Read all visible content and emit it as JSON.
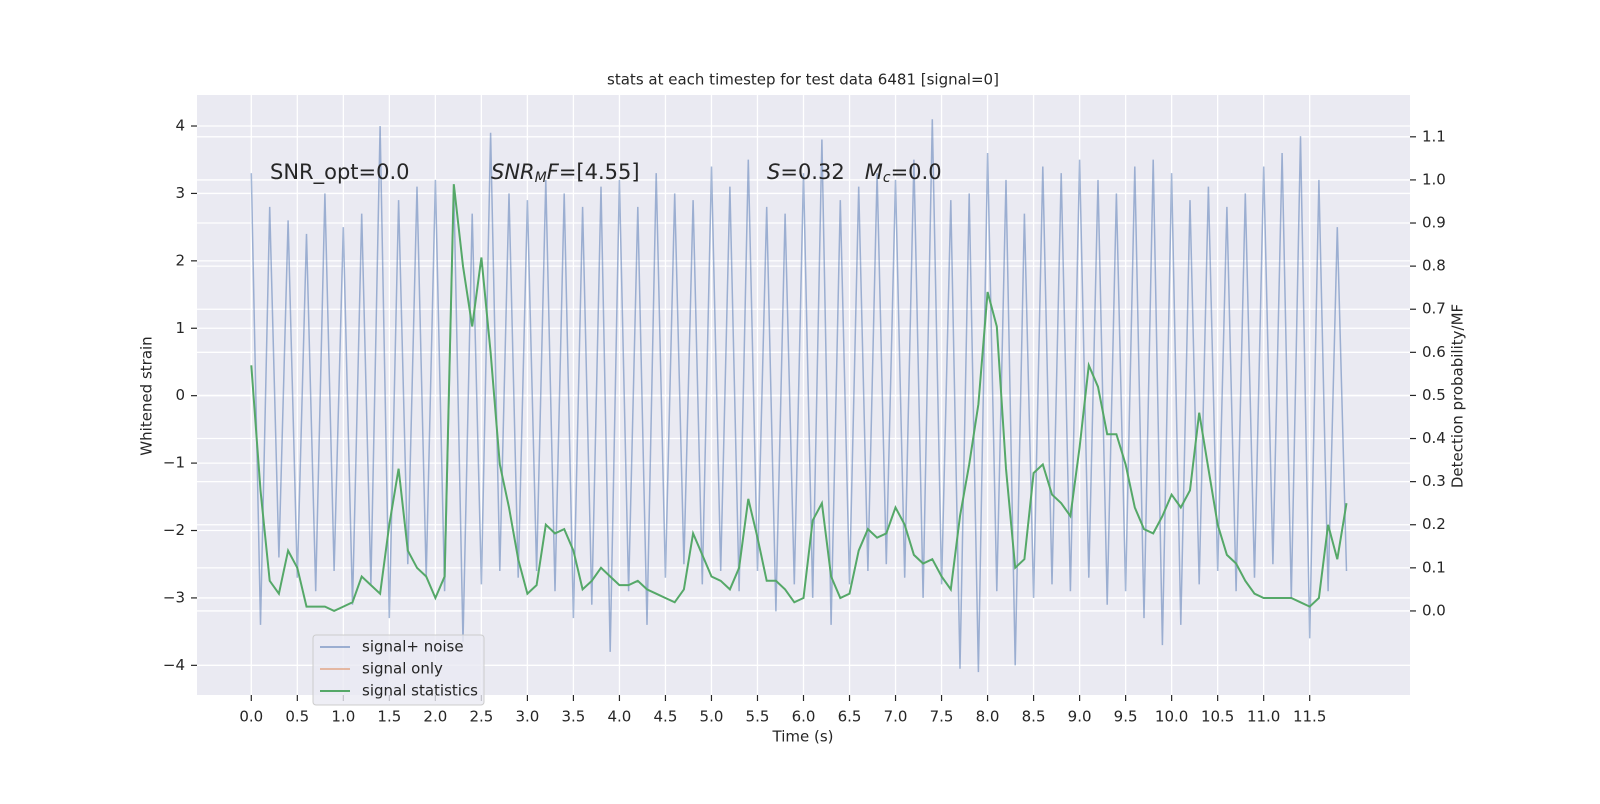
{
  "chart_data": {
    "type": "line",
    "title": "stats at each timestep for test data 6481 [signal=0]",
    "x_label": "Time (s)",
    "y_label": "Whitened strain",
    "y2_label": "Detection probability/MF",
    "annotations": [
      {
        "parts": [
          "SNR_opt=0.0"
        ]
      },
      {
        "parts": [
          "SNR",
          "M",
          "F",
          "=[4.55]"
        ]
      },
      {
        "parts": [
          "S",
          "=0.32   ",
          "M",
          "c",
          "=0.0"
        ]
      }
    ],
    "xlim": [
      -0.59,
      12.59
    ],
    "ylim": [
      -4.44,
      4.46
    ],
    "y2lim": [
      -0.195,
      1.197
    ],
    "xticks": [
      {
        "value": 0,
        "label": "0.0"
      },
      {
        "value": 0.5,
        "label": "0.5"
      },
      {
        "value": 1,
        "label": "1.0"
      },
      {
        "value": 1.5,
        "label": "1.5"
      },
      {
        "value": 2,
        "label": "2.0"
      },
      {
        "value": 2.5,
        "label": "2.5"
      },
      {
        "value": 3,
        "label": "3.0"
      },
      {
        "value": 3.5,
        "label": "3.5"
      },
      {
        "value": 4,
        "label": "4.0"
      },
      {
        "value": 4.5,
        "label": "4.5"
      },
      {
        "value": 5,
        "label": "5.0"
      },
      {
        "value": 5.5,
        "label": "5.5"
      },
      {
        "value": 6,
        "label": "6.0"
      },
      {
        "value": 6.5,
        "label": "6.5"
      },
      {
        "value": 7,
        "label": "7.0"
      },
      {
        "value": 7.5,
        "label": "7.5"
      },
      {
        "value": 8,
        "label": "8.0"
      },
      {
        "value": 8.5,
        "label": "8.5"
      },
      {
        "value": 9,
        "label": "9.0"
      },
      {
        "value": 9.5,
        "label": "9.5"
      },
      {
        "value": 10,
        "label": "10.0"
      },
      {
        "value": 10.5,
        "label": "10.5"
      },
      {
        "value": 11,
        "label": "11.0"
      },
      {
        "value": 11.5,
        "label": "11.5"
      }
    ],
    "yticks": [
      {
        "value": -4,
        "label": "−4"
      },
      {
        "value": -3,
        "label": "−3"
      },
      {
        "value": -2,
        "label": "−2"
      },
      {
        "value": -1,
        "label": "−1"
      },
      0,
      1,
      2,
      3,
      4
    ],
    "y2ticks": [
      {
        "value": 0,
        "label": "0.0"
      },
      {
        "value": 0.1,
        "label": "0.1"
      },
      {
        "value": 0.2,
        "label": "0.2"
      },
      {
        "value": 0.3,
        "label": "0.3"
      },
      {
        "value": 0.4,
        "label": "0.4"
      },
      {
        "value": 0.5,
        "label": "0.5"
      },
      {
        "value": 0.6,
        "label": "0.6"
      },
      {
        "value": 0.7,
        "label": "0.7"
      },
      {
        "value": 0.8,
        "label": "0.8"
      },
      {
        "value": 0.9,
        "label": "0.9"
      },
      {
        "value": 1.0,
        "label": "1.0"
      },
      {
        "value": 1.1,
        "label": "1.1"
      }
    ],
    "grid": true,
    "x": [
      0,
      0.1,
      0.2,
      0.3,
      0.4,
      0.5,
      0.6,
      0.7,
      0.8,
      0.9,
      1,
      1.1,
      1.2,
      1.3,
      1.4,
      1.5,
      1.6,
      1.7,
      1.8,
      1.9,
      2,
      2.1,
      2.2,
      2.3,
      2.4,
      2.5,
      2.6,
      2.7,
      2.8,
      2.9,
      3,
      3.1,
      3.2,
      3.3,
      3.4,
      3.5,
      3.6,
      3.7,
      3.8,
      3.9,
      4,
      4.1,
      4.2,
      4.3,
      4.4,
      4.5,
      4.6,
      4.7,
      4.8,
      4.9,
      5,
      5.1,
      5.2,
      5.3,
      5.4,
      5.5,
      5.6,
      5.7,
      5.8,
      5.9,
      6,
      6.1,
      6.2,
      6.3,
      6.4,
      6.5,
      6.6,
      6.7,
      6.8,
      6.9,
      7,
      7.1,
      7.2,
      7.3,
      7.4,
      7.5,
      7.6,
      7.7,
      7.8,
      7.9,
      8,
      8.1,
      8.2,
      8.3,
      8.4,
      8.5,
      8.6,
      8.7,
      8.8,
      8.9,
      9,
      9.1,
      9.2,
      9.3,
      9.4,
      9.5,
      9.6,
      9.7,
      9.8,
      9.9,
      10,
      10.1,
      10.2,
      10.3,
      10.4,
      10.5,
      10.6,
      10.7,
      10.8,
      10.9,
      11,
      11.1,
      11.2,
      11.3,
      11.4,
      11.5,
      11.6,
      11.7,
      11.8,
      11.9
    ],
    "series": [
      {
        "name": "signal+ noise",
        "color": "#4c72b0",
        "values": [
          3.3,
          -3.4,
          2.8,
          -2.4,
          2.6,
          -2.7,
          2.4,
          -2.9,
          3.0,
          -2.6,
          2.5,
          -3.1,
          2.7,
          -2.8,
          4.0,
          -3.3,
          2.9,
          -2.5,
          3.1,
          -2.7,
          3.2,
          -2.9,
          3.1,
          -3.65,
          2.7,
          -2.8,
          3.9,
          -2.6,
          3.0,
          -2.7,
          2.9,
          -2.6,
          3.2,
          -2.9,
          3.0,
          -3.3,
          2.8,
          -3.1,
          3.1,
          -3.8,
          3.2,
          -2.9,
          2.8,
          -3.4,
          3.3,
          -2.7,
          3.0,
          -2.5,
          2.9,
          -2.8,
          3.4,
          -2.6,
          3.1,
          -2.9,
          3.5,
          -2.6,
          2.8,
          -3.2,
          2.7,
          -2.8,
          3.3,
          -3.0,
          3.8,
          -3.4,
          2.9,
          -2.8,
          3.1,
          -2.6,
          3.3,
          -2.5,
          3.2,
          -2.7,
          3.5,
          -3.0,
          4.1,
          -2.8,
          2.9,
          -4.05,
          3.0,
          -4.1,
          3.6,
          -2.9,
          3.2,
          -4.0,
          2.7,
          -3.0,
          3.4,
          -2.8,
          3.3,
          -2.9,
          3.5,
          -2.7,
          3.2,
          -3.1,
          3.0,
          -2.9,
          3.4,
          -3.3,
          3.5,
          -3.7,
          3.3,
          -3.4,
          2.9,
          -2.8,
          3.1,
          -2.6,
          2.8,
          -2.9,
          3.0,
          -2.7,
          3.4,
          -2.5,
          3.6,
          -3.0,
          3.85,
          -3.6,
          3.2,
          -2.9,
          2.5,
          -2.6
        ]
      },
      {
        "name": "signal only",
        "color": "#dd8452"
      },
      {
        "name": "signal statistics",
        "color": "#55a868",
        "axis": "y2",
        "values": [
          0.57,
          0.28,
          0.07,
          0.04,
          0.14,
          0.1,
          0.01,
          0.01,
          0.01,
          0.0,
          0.01,
          0.02,
          0.08,
          0.06,
          0.04,
          0.2,
          0.33,
          0.14,
          0.1,
          0.08,
          0.03,
          0.08,
          0.99,
          0.8,
          0.66,
          0.82,
          0.6,
          0.34,
          0.24,
          0.12,
          0.04,
          0.06,
          0.2,
          0.18,
          0.19,
          0.14,
          0.05,
          0.07,
          0.1,
          0.08,
          0.06,
          0.06,
          0.07,
          0.05,
          0.04,
          0.03,
          0.02,
          0.05,
          0.18,
          0.13,
          0.08,
          0.07,
          0.05,
          0.1,
          0.26,
          0.17,
          0.07,
          0.07,
          0.05,
          0.02,
          0.03,
          0.21,
          0.25,
          0.08,
          0.03,
          0.04,
          0.14,
          0.19,
          0.17,
          0.18,
          0.24,
          0.2,
          0.13,
          0.11,
          0.12,
          0.08,
          0.05,
          0.22,
          0.34,
          0.48,
          0.74,
          0.66,
          0.33,
          0.1,
          0.12,
          0.32,
          0.34,
          0.27,
          0.25,
          0.22,
          0.38,
          0.57,
          0.52,
          0.41,
          0.41,
          0.34,
          0.24,
          0.19,
          0.18,
          0.22,
          0.27,
          0.24,
          0.28,
          0.46,
          0.33,
          0.2,
          0.13,
          0.11,
          0.07,
          0.04,
          0.03,
          0.03,
          0.03,
          0.03,
          0.02,
          0.01,
          0.03,
          0.2,
          0.12,
          0.25
        ]
      }
    ]
  }
}
